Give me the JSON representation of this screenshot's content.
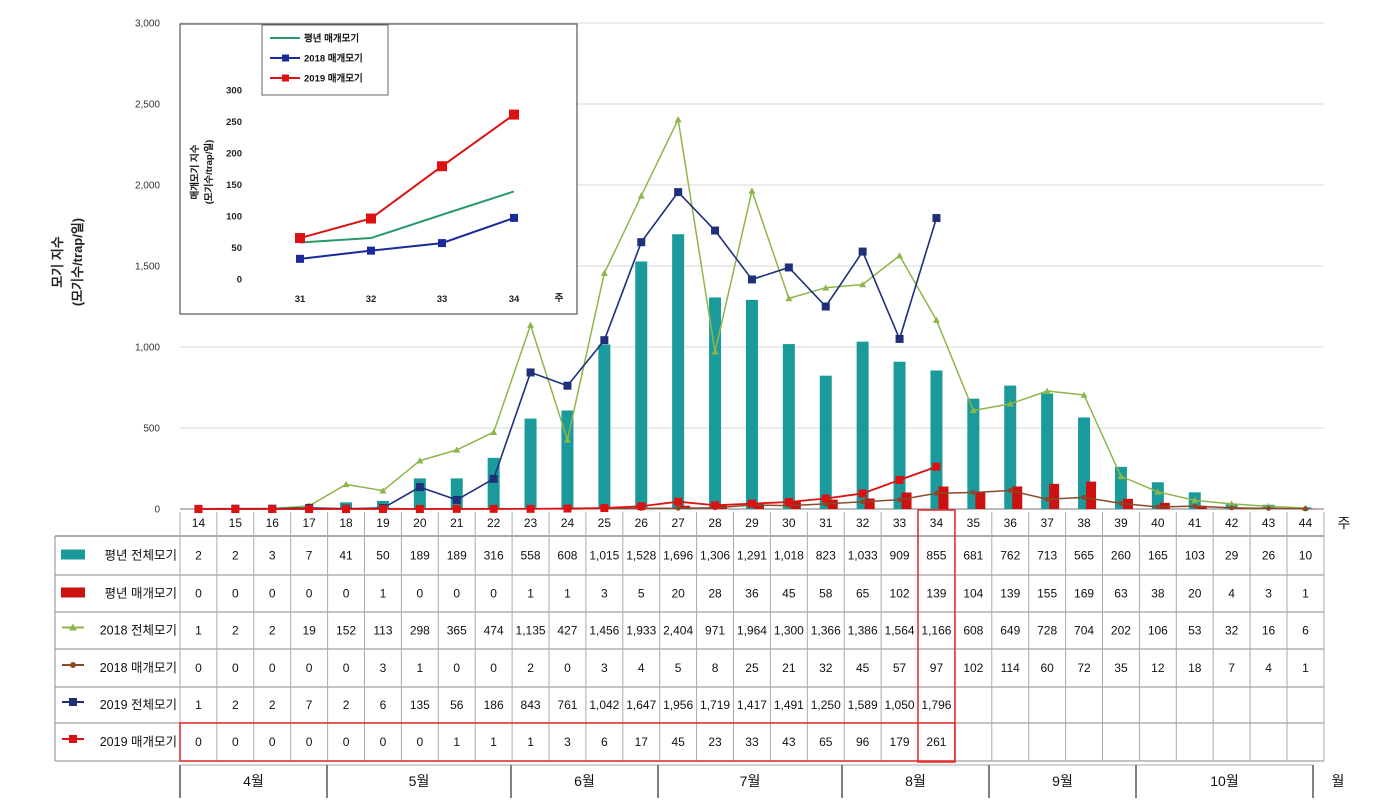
{
  "chart_data": {
    "type": "bar",
    "ylabel_line1": "모기 지수",
    "ylabel_line2": "(모기수/trap/일)",
    "ylim": [
      0,
      3000
    ],
    "y_ticks": [
      "0",
      "500",
      "1,000",
      "1,500",
      "2,000",
      "2,500",
      "3,000"
    ],
    "x_unit": "주",
    "month_unit": "월",
    "weeks": [
      "14",
      "15",
      "16",
      "17",
      "18",
      "19",
      "20",
      "21",
      "22",
      "23",
      "24",
      "25",
      "26",
      "27",
      "28",
      "29",
      "30",
      "31",
      "32",
      "33",
      "34",
      "35",
      "36",
      "37",
      "38",
      "39",
      "40",
      "41",
      "42",
      "43",
      "44"
    ],
    "months": [
      "4월",
      "5월",
      "6월",
      "7월",
      "8월",
      "9월",
      "10월"
    ],
    "series": [
      {
        "name": "평년 전체모기",
        "kind": "bar",
        "color": "#1a9a9a",
        "values": [
          2,
          2,
          3,
          7,
          41,
          50,
          189,
          189,
          316,
          558,
          608,
          1015,
          1528,
          1696,
          1306,
          1291,
          1018,
          823,
          1033,
          909,
          855,
          681,
          762,
          713,
          565,
          260,
          165,
          103,
          29,
          26,
          10
        ],
        "labels": [
          "2",
          "2",
          "3",
          "7",
          "41",
          "50",
          "189",
          "189",
          "316",
          "558",
          "608",
          "1,015",
          "1,528",
          "1,696",
          "1,306",
          "1,291",
          "1,018",
          "823",
          "1,033",
          "909",
          "855",
          "681",
          "762",
          "713",
          "565",
          "260",
          "165",
          "103",
          "29",
          "26",
          "10"
        ]
      },
      {
        "name": "평년 매개모기",
        "kind": "bar",
        "color": "#cc1111",
        "values": [
          0,
          0,
          0,
          0,
          0,
          1,
          0,
          0,
          0,
          1,
          1,
          3,
          5,
          20,
          28,
          36,
          45,
          58,
          65,
          102,
          139,
          104,
          139,
          155,
          169,
          63,
          38,
          20,
          4,
          3,
          1
        ],
        "labels": [
          "0",
          "0",
          "0",
          "0",
          "0",
          "1",
          "0",
          "0",
          "0",
          "1",
          "1",
          "3",
          "5",
          "20",
          "28",
          "36",
          "45",
          "58",
          "65",
          "102",
          "139",
          "104",
          "139",
          "155",
          "169",
          "63",
          "38",
          "20",
          "4",
          "3",
          "1"
        ]
      },
      {
        "name": "2018 전체모기",
        "kind": "line",
        "color": "#8db64a",
        "values": [
          1,
          2,
          2,
          19,
          152,
          113,
          298,
          365,
          474,
          1135,
          427,
          1456,
          1933,
          2404,
          971,
          1964,
          1300,
          1366,
          1386,
          1564,
          1166,
          608,
          649,
          728,
          704,
          202,
          106,
          53,
          32,
          16,
          6
        ],
        "labels": [
          "1",
          "2",
          "2",
          "19",
          "152",
          "113",
          "298",
          "365",
          "474",
          "1,135",
          "427",
          "1,456",
          "1,933",
          "2,404",
          "971",
          "1,964",
          "1,300",
          "1,366",
          "1,386",
          "1,564",
          "1,166",
          "608",
          "649",
          "728",
          "704",
          "202",
          "106",
          "53",
          "32",
          "16",
          "6"
        ]
      },
      {
        "name": "2018 매개모기",
        "kind": "line",
        "color": "#8a4a2a",
        "values": [
          0,
          0,
          0,
          0,
          0,
          3,
          1,
          0,
          0,
          2,
          0,
          3,
          4,
          5,
          8,
          25,
          21,
          32,
          45,
          57,
          97,
          102,
          114,
          60,
          72,
          35,
          12,
          18,
          7,
          4,
          1
        ],
        "labels": [
          "0",
          "0",
          "0",
          "0",
          "0",
          "3",
          "1",
          "0",
          "0",
          "2",
          "0",
          "3",
          "4",
          "5",
          "8",
          "25",
          "21",
          "32",
          "45",
          "57",
          "97",
          "102",
          "114",
          "60",
          "72",
          "35",
          "12",
          "18",
          "7",
          "4",
          "1"
        ]
      },
      {
        "name": "2019 전체모기",
        "kind": "line",
        "color": "#1f2f7a",
        "values": [
          1,
          2,
          2,
          7,
          2,
          6,
          135,
          56,
          186,
          843,
          761,
          1042,
          1647,
          1956,
          1719,
          1417,
          1491,
          1250,
          1589,
          1050,
          1796
        ],
        "labels": [
          "1",
          "2",
          "2",
          "7",
          "2",
          "6",
          "135",
          "56",
          "186",
          "843",
          "761",
          "1,042",
          "1,647",
          "1,956",
          "1,719",
          "1,417",
          "1,491",
          "1,250",
          "1,589",
          "1,050",
          "1,796"
        ]
      },
      {
        "name": "2019 매개모기",
        "kind": "line",
        "color": "#dd1111",
        "values": [
          0,
          0,
          0,
          0,
          0,
          0,
          0,
          1,
          1,
          1,
          3,
          6,
          17,
          45,
          23,
          33,
          43,
          65,
          96,
          179,
          261
        ],
        "labels": [
          "0",
          "0",
          "0",
          "0",
          "0",
          "0",
          "0",
          "1",
          "1",
          "1",
          "3",
          "6",
          "17",
          "45",
          "23",
          "33",
          "43",
          "65",
          "96",
          "179",
          "261"
        ]
      }
    ],
    "inset": {
      "ylabel_line1": "매개모기 지수",
      "ylabel_line2": "(모기수/trap/일)",
      "ylim": [
        0,
        300
      ],
      "y_ticks": [
        "0",
        "50",
        "100",
        "150",
        "200",
        "250",
        "300"
      ],
      "x": [
        "31",
        "32",
        "33",
        "34"
      ],
      "x_unit": "주",
      "legend": [
        "평년 매개모기",
        "2018 매개모기",
        "2019 매개모기"
      ],
      "series": [
        {
          "name": "평년 매개모기",
          "color": "#2a9a6a",
          "values": [
            58,
            65,
            102,
            139
          ]
        },
        {
          "name": "2018 매개모기",
          "color": "#1a2a9a",
          "values": [
            32,
            45,
            57,
            97
          ]
        },
        {
          "name": "2019 매개모기",
          "color": "#dd1111",
          "values": [
            65,
            96,
            179,
            261
          ]
        }
      ]
    }
  }
}
